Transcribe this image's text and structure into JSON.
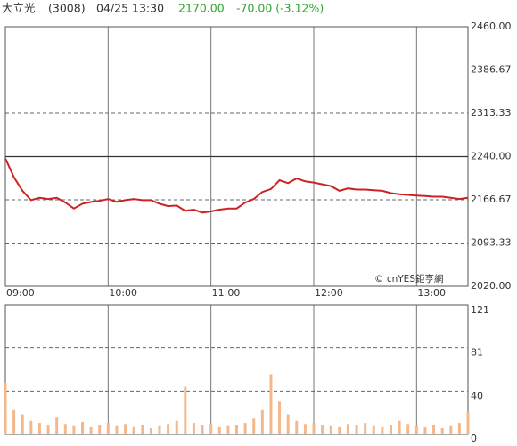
{
  "header": {
    "name": "大立光",
    "code": "(3008)",
    "time": "04/25 13:30",
    "price": "2170.00",
    "change": "-70.00 (-3.12%)"
  },
  "chart_data": [
    {
      "type": "line",
      "annotation": "© cnYES鉅亨網",
      "x": [
        "09:00",
        "09:05",
        "09:10",
        "09:15",
        "09:20",
        "09:25",
        "09:30",
        "09:35",
        "09:40",
        "09:45",
        "09:50",
        "09:55",
        "10:00",
        "10:05",
        "10:10",
        "10:15",
        "10:20",
        "10:25",
        "10:30",
        "10:35",
        "10:40",
        "10:45",
        "10:50",
        "10:55",
        "11:00",
        "11:05",
        "11:10",
        "11:15",
        "11:20",
        "11:25",
        "11:30",
        "11:35",
        "11:40",
        "11:45",
        "11:50",
        "11:55",
        "12:00",
        "12:05",
        "12:10",
        "12:15",
        "12:20",
        "12:25",
        "12:30",
        "12:35",
        "12:40",
        "12:45",
        "12:50",
        "12:55",
        "13:00",
        "13:05",
        "13:10",
        "13:15",
        "13:20",
        "13:25",
        "13:30"
      ],
      "xlim": [
        "09:00",
        "13:30"
      ],
      "xticks": [
        "09:00",
        "10:00",
        "11:00",
        "12:00",
        "13:00"
      ],
      "series": [
        {
          "color": "#cc2222",
          "values": [
            2237,
            2205,
            2182,
            2166,
            2170,
            2168,
            2170,
            2162,
            2152,
            2160,
            2163,
            2165,
            2168,
            2163,
            2166,
            2168,
            2166,
            2166,
            2160,
            2156,
            2157,
            2148,
            2150,
            2145,
            2147,
            2150,
            2152,
            2152,
            2162,
            2168,
            2180,
            2185,
            2200,
            2195,
            2203,
            2198,
            2196,
            2193,
            2190,
            2182,
            2186,
            2184,
            2184,
            2183,
            2182,
            2178,
            2176,
            2175,
            2174,
            2173,
            2172,
            2172,
            2170,
            2168,
            2170
          ]
        }
      ],
      "ylim": [
        2020,
        2460
      ],
      "yticks": [
        {
          "value": 2020,
          "label": "2020.00"
        },
        {
          "value": 2093.33,
          "label": "2093.33"
        },
        {
          "value": 2166.67,
          "label": "2166.67"
        },
        {
          "value": 2240,
          "label": "2240.00"
        },
        {
          "value": 2313.33,
          "label": "2313.33"
        },
        {
          "value": 2386.67,
          "label": "2386.67"
        },
        {
          "value": 2460,
          "label": "2460.00"
        }
      ],
      "reference_line": 2240,
      "grid": true
    },
    {
      "type": "bar",
      "color": "#f5b88a",
      "values": [
        48,
        22,
        18,
        12,
        10,
        8,
        15,
        9,
        7,
        11,
        6,
        8,
        10,
        7,
        9,
        6,
        8,
        5,
        7,
        9,
        12,
        44,
        10,
        8,
        9,
        6,
        7,
        8,
        10,
        14,
        22,
        56,
        30,
        18,
        12,
        9,
        10,
        8,
        7,
        6,
        9,
        8,
        10,
        7,
        6,
        8,
        12,
        9,
        7,
        6,
        8,
        5,
        7,
        10,
        20
      ],
      "ylim": [
        0,
        121
      ],
      "yticks": [
        0,
        40,
        81,
        121
      ],
      "grid": true
    }
  ]
}
